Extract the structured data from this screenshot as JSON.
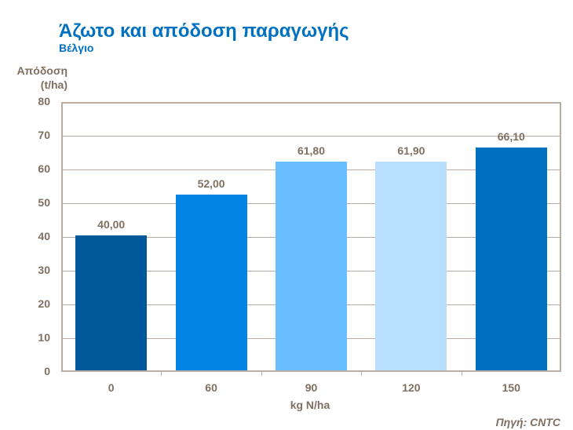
{
  "title": "Άζωτο και απόδοση παραγωγής",
  "subtitle": "Βέλγιο",
  "ylabel_line1": "Απόδοση",
  "ylabel_line2": "(t/ha)",
  "xlabel": "kg N/ha",
  "source": "Πηγή: CNTC",
  "yticks": [
    "80",
    "70",
    "60",
    "50",
    "40",
    "30",
    "20",
    "10",
    "0"
  ],
  "bars": [
    {
      "category": "0",
      "value": 40.0,
      "label": "40,00",
      "color": "#00589A"
    },
    {
      "category": "60",
      "value": 52.0,
      "label": "52,00",
      "color": "#0083E3"
    },
    {
      "category": "90",
      "value": 61.8,
      "label": "61,80",
      "color": "#69BEFF"
    },
    {
      "category": "120",
      "value": 61.9,
      "label": "61,90",
      "color": "#B8DFFF"
    },
    {
      "category": "150",
      "value": 66.1,
      "label": "66,10",
      "color": "#0070C0"
    }
  ],
  "chart_data": {
    "type": "bar",
    "title": "Άζωτο και απόδοση παραγωγής",
    "subtitle": "Βέλγιο",
    "categories": [
      "0",
      "60",
      "90",
      "120",
      "150"
    ],
    "values": [
      40.0,
      52.0,
      61.8,
      61.9,
      66.1
    ],
    "data_labels": [
      "40,00",
      "52,00",
      "61,80",
      "61,90",
      "66,10"
    ],
    "xlabel": "kg N/ha",
    "ylabel": "Απόδοση (t/ha)",
    "ylim": [
      0,
      80
    ],
    "yticks": [
      0,
      10,
      20,
      30,
      40,
      50,
      60,
      70,
      80
    ],
    "grid": true,
    "legend": "none",
    "annotation": "Πηγή: CNTC",
    "colors": [
      "#00589A",
      "#0083E3",
      "#69BEFF",
      "#B8DFFF",
      "#0070C0"
    ]
  }
}
